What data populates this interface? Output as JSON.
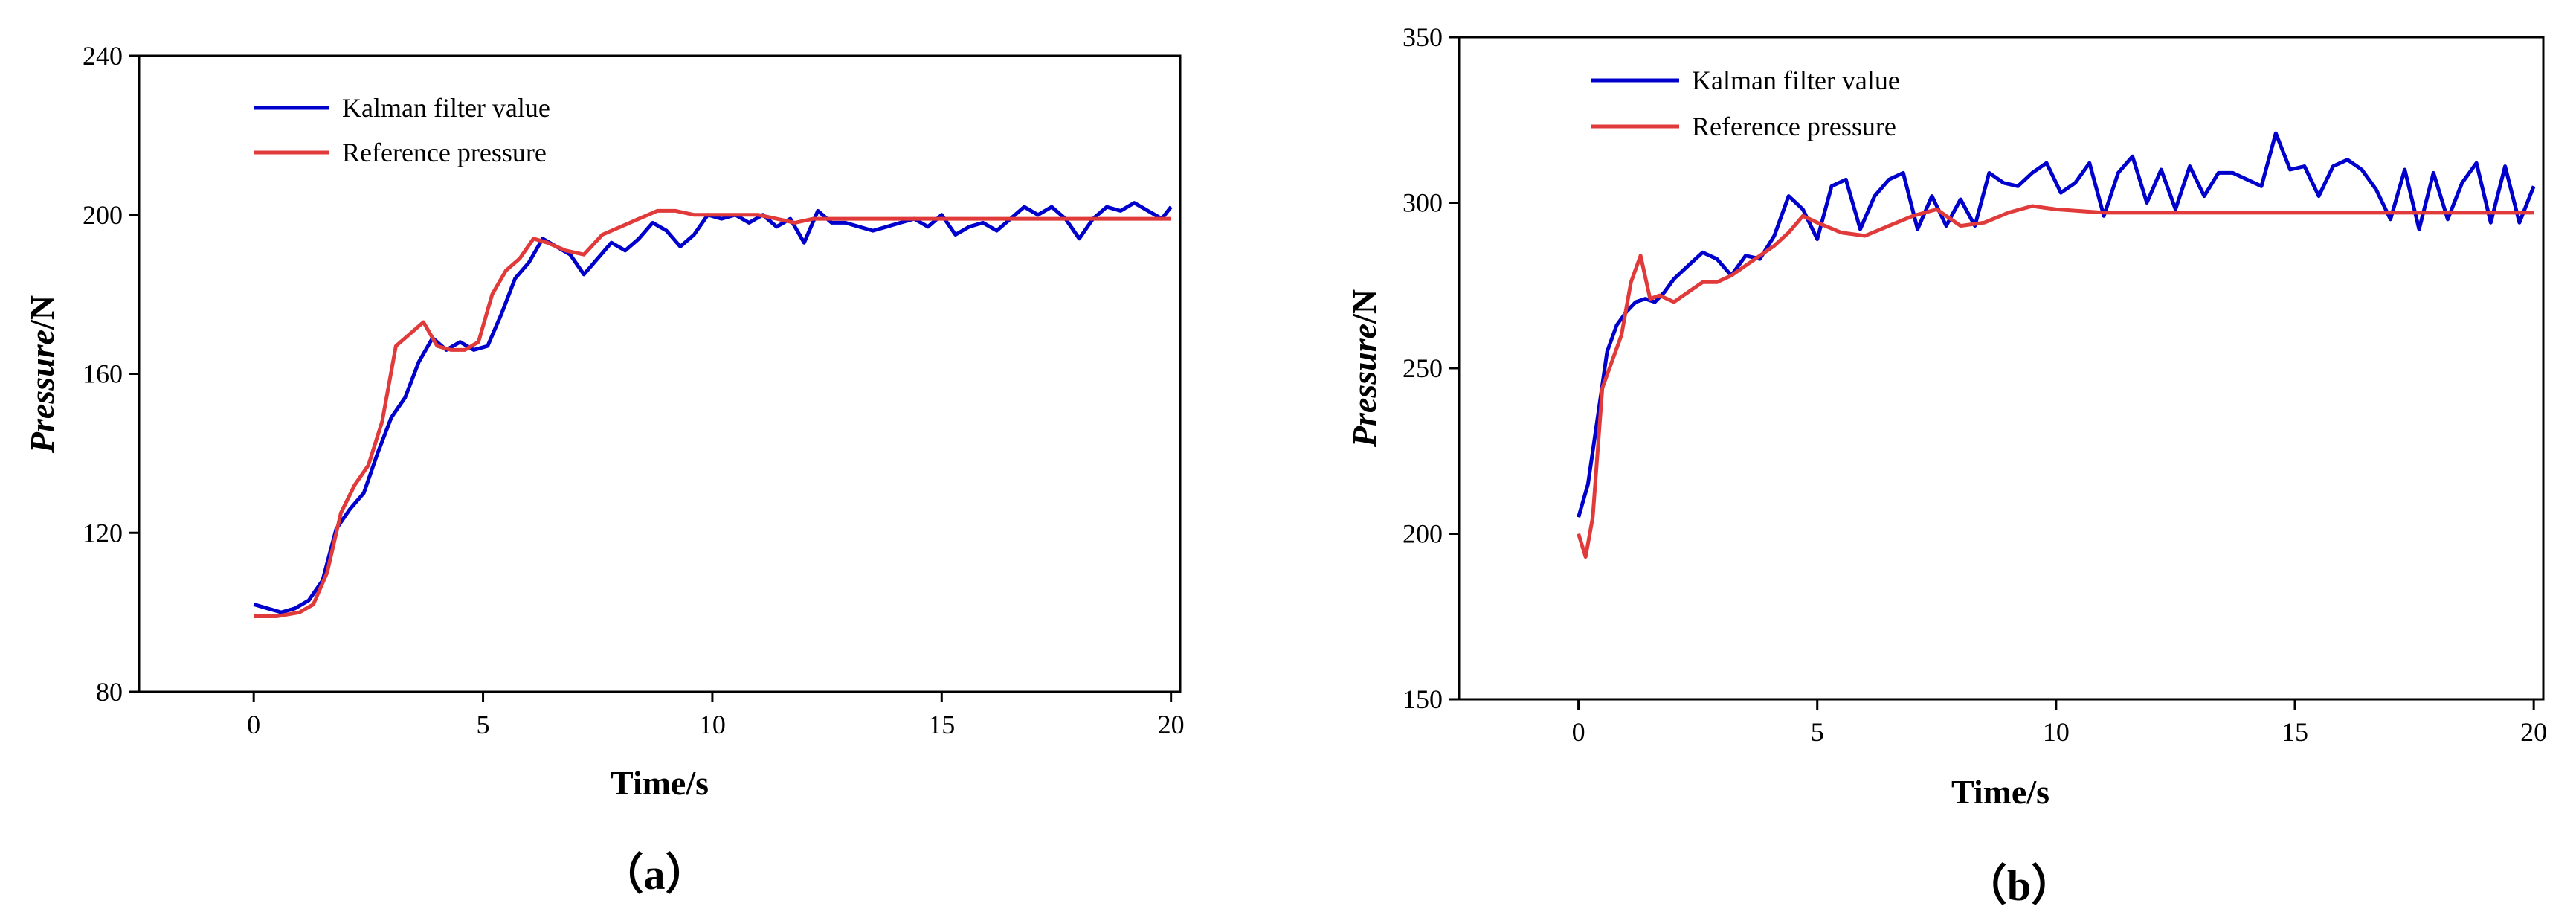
{
  "chart_data": [
    {
      "type": "line",
      "panel_label": "（a）",
      "xlabel": "Time/s",
      "ylabel_italic": "Pressure",
      "ylabel_unit": "/N",
      "xlim": [
        -2.5,
        20.2
      ],
      "ylim": [
        80,
        240
      ],
      "xticks": [
        0,
        5,
        10,
        15,
        20
      ],
      "yticks": [
        80,
        120,
        160,
        200,
        240
      ],
      "legend_position": "top-left",
      "series": [
        {
          "name": "Kalman filter value",
          "color": "#0000cc",
          "x": [
            0,
            0.3,
            0.6,
            0.9,
            1.2,
            1.5,
            1.8,
            2.1,
            2.4,
            2.7,
            3.0,
            3.3,
            3.6,
            3.9,
            4.2,
            4.5,
            4.8,
            5.1,
            5.4,
            5.7,
            6.0,
            6.3,
            6.6,
            6.9,
            7.2,
            7.5,
            7.8,
            8.1,
            8.4,
            8.7,
            9.0,
            9.3,
            9.6,
            9.9,
            10.2,
            10.5,
            10.8,
            11.1,
            11.4,
            11.7,
            12.0,
            12.3,
            12.6,
            12.9,
            13.2,
            13.5,
            13.8,
            14.1,
            14.4,
            14.7,
            15.0,
            15.3,
            15.6,
            15.9,
            16.2,
            16.5,
            16.8,
            17.1,
            17.4,
            17.7,
            18.0,
            18.3,
            18.6,
            18.9,
            19.2,
            19.5,
            19.8,
            20.0
          ],
          "y": [
            102,
            101,
            100,
            101,
            103,
            108,
            121,
            126,
            130,
            140,
            149,
            154,
            163,
            169,
            166,
            168,
            166,
            167,
            175,
            184,
            188,
            194,
            192,
            190,
            185,
            189,
            193,
            191,
            194,
            198,
            196,
            192,
            195,
            200,
            199,
            200,
            198,
            200,
            197,
            199,
            193,
            201,
            198,
            198,
            197,
            196,
            197,
            198,
            199,
            197,
            200,
            195,
            197,
            198,
            196,
            199,
            202,
            200,
            202,
            199,
            194,
            199,
            202,
            201,
            203,
            201,
            199,
            202
          ]
        },
        {
          "name": "Reference pressure",
          "color": "#e03a3a",
          "x": [
            0,
            0.5,
            1.0,
            1.3,
            1.6,
            1.9,
            2.2,
            2.5,
            2.8,
            3.1,
            3.4,
            3.7,
            4.0,
            4.3,
            4.6,
            4.9,
            5.2,
            5.5,
            5.8,
            6.1,
            6.4,
            6.8,
            7.2,
            7.6,
            8.0,
            8.4,
            8.8,
            9.2,
            9.6,
            10.0,
            10.5,
            11.0,
            11.4,
            11.8,
            12.2,
            13.0,
            14.0,
            15.0,
            16.0,
            17.0,
            18.0,
            19.0,
            20.0
          ],
          "y": [
            99,
            99,
            100,
            102,
            110,
            125,
            132,
            137,
            148,
            167,
            170,
            173,
            167,
            166,
            166,
            168,
            180,
            186,
            189,
            194,
            193,
            191,
            190,
            195,
            197,
            199,
            201,
            201,
            200,
            200,
            200,
            200,
            199,
            198,
            199,
            199,
            199,
            199,
            199,
            199,
            199,
            199,
            199
          ]
        }
      ]
    },
    {
      "type": "line",
      "panel_label": "（b）",
      "xlabel": "Time/s",
      "ylabel_italic": "Pressure",
      "ylabel_unit": "/N",
      "xlim": [
        -2.5,
        20.2
      ],
      "ylim": [
        150,
        350
      ],
      "xticks": [
        0,
        5,
        10,
        15,
        20
      ],
      "yticks": [
        150,
        200,
        250,
        300,
        350
      ],
      "legend_position": "top-left",
      "series": [
        {
          "name": "Kalman filter value",
          "color": "#0000cc",
          "x": [
            0,
            0.2,
            0.4,
            0.6,
            0.8,
            1.0,
            1.2,
            1.4,
            1.6,
            1.8,
            2.0,
            2.3,
            2.6,
            2.9,
            3.2,
            3.5,
            3.8,
            4.1,
            4.4,
            4.7,
            5.0,
            5.3,
            5.6,
            5.9,
            6.2,
            6.5,
            6.8,
            7.1,
            7.4,
            7.7,
            8.0,
            8.3,
            8.6,
            8.9,
            9.2,
            9.5,
            9.8,
            10.1,
            10.4,
            10.7,
            11.0,
            11.3,
            11.6,
            11.9,
            12.2,
            12.5,
            12.8,
            13.1,
            13.4,
            13.7,
            14.0,
            14.3,
            14.6,
            14.9,
            15.2,
            15.5,
            15.8,
            16.1,
            16.4,
            16.7,
            17.0,
            17.3,
            17.6,
            17.9,
            18.2,
            18.5,
            18.8,
            19.1,
            19.4,
            19.7,
            20.0
          ],
          "y": [
            205,
            215,
            235,
            255,
            263,
            267,
            270,
            271,
            270,
            273,
            277,
            281,
            285,
            283,
            278,
            284,
            283,
            290,
            302,
            298,
            289,
            305,
            307,
            292,
            302,
            307,
            309,
            292,
            302,
            293,
            301,
            293,
            309,
            306,
            305,
            309,
            312,
            303,
            306,
            312,
            296,
            309,
            314,
            300,
            310,
            298,
            311,
            302,
            309,
            309,
            307,
            305,
            321,
            310,
            311,
            302,
            311,
            313,
            310,
            304,
            295,
            310,
            292,
            309,
            295,
            306,
            312,
            294,
            311,
            294,
            305
          ]
        },
        {
          "name": "Reference pressure",
          "color": "#e03a3a",
          "x": [
            0,
            0.15,
            0.3,
            0.5,
            0.7,
            0.9,
            1.1,
            1.3,
            1.5,
            1.7,
            2.0,
            2.3,
            2.6,
            2.9,
            3.2,
            3.5,
            3.8,
            4.1,
            4.4,
            4.7,
            5.0,
            5.5,
            6.0,
            6.5,
            7.0,
            7.5,
            8.0,
            8.5,
            9.0,
            9.5,
            10.0,
            11.0,
            12.0,
            13.0,
            14.0,
            15.0,
            16.0,
            17.0,
            18.0,
            19.0,
            20.0
          ],
          "y": [
            200,
            193,
            205,
            244,
            252,
            260,
            276,
            284,
            271,
            272,
            270,
            273,
            276,
            276,
            278,
            281,
            284,
            287,
            291,
            296,
            294,
            291,
            290,
            293,
            296,
            298,
            293,
            294,
            297,
            299,
            298,
            297,
            297,
            297,
            297,
            297,
            297,
            297,
            297,
            297,
            297
          ]
        }
      ]
    }
  ]
}
